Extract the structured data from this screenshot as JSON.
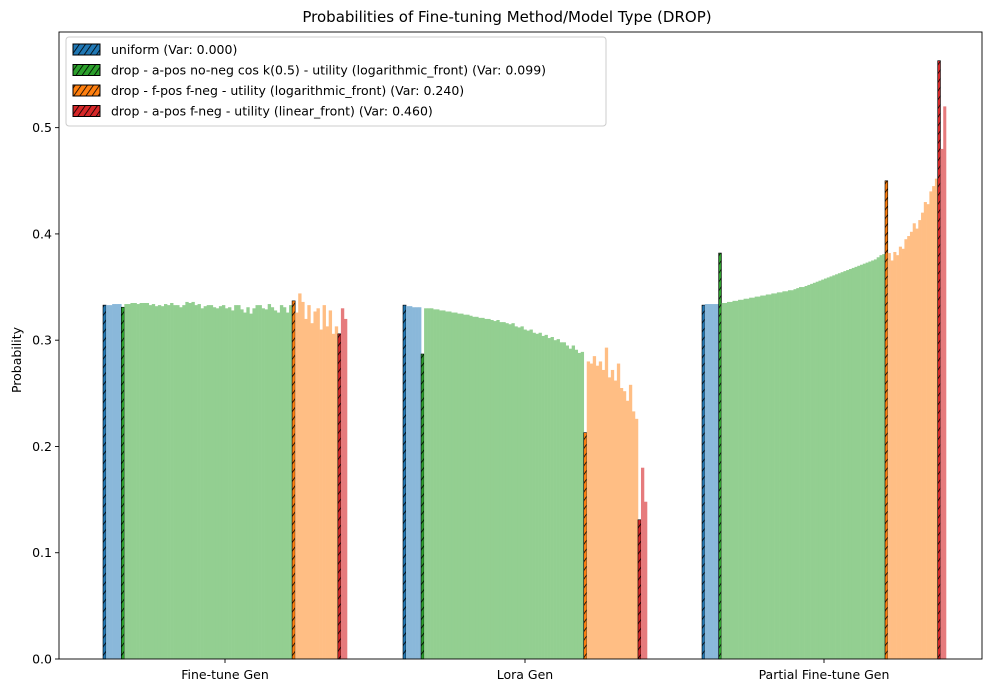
{
  "chart_data": {
    "type": "bar",
    "title": "Probabilities of Fine-tuning Method/Model Type (DROP)",
    "xlabel": "",
    "ylabel": "Probability",
    "ylim": [
      0,
      0.59
    ],
    "yticks": [
      0.0,
      0.1,
      0.2,
      0.3,
      0.4,
      0.5
    ],
    "ytick_labels": [
      "0.0",
      "0.1",
      "0.2",
      "0.3",
      "0.4",
      "0.5"
    ],
    "categories": [
      "Fine-tune Gen",
      "Lora Gen",
      "Partial Fine-tune Gen"
    ],
    "legend_position": "upper-left",
    "grid": false,
    "series": [
      {
        "name": "uniform (Var: 0.000)",
        "color": "#1f77b4",
        "values": [
          0.333,
          0.333,
          0.333
        ]
      },
      {
        "name": "drop - a-pos no-neg cos k(0.5) - utility (logarithmic_front) (Var: 0.099)",
        "color": "#2ca02c",
        "values": [
          0.331,
          0.287,
          0.382
        ]
      },
      {
        "name": "drop - f-pos f-neg - utility (logarithmic_front) (Var: 0.240)",
        "color": "#ff7f0e",
        "values": [
          0.337,
          0.213,
          0.45
        ]
      },
      {
        "name": "drop - a-pos f-neg - utility (linear_front) (Var: 0.460)",
        "color": "#d62728",
        "values": [
          0.306,
          0.131,
          0.563
        ]
      }
    ],
    "interpolated_bars": [
      {
        "group": "Fine-tune Gen",
        "blue": [
          0.333,
          0.333,
          0.334,
          0.334,
          0.334
        ],
        "green": [
          0.334,
          0.334,
          0.335,
          0.335,
          0.334,
          0.335,
          0.335,
          0.335,
          0.333,
          0.334,
          0.332,
          0.333,
          0.332,
          0.334,
          0.333,
          0.335,
          0.333,
          0.333,
          0.331,
          0.333,
          0.336,
          0.335,
          0.336,
          0.333,
          0.334,
          0.33,
          0.332,
          0.333,
          0.333,
          0.331,
          0.33,
          0.332,
          0.333,
          0.33,
          0.331,
          0.328,
          0.333,
          0.333,
          0.329,
          0.326,
          0.331,
          0.325,
          0.33,
          0.333,
          0.333,
          0.33,
          0.329,
          0.334,
          0.331,
          0.328,
          0.326,
          0.333,
          0.331,
          0.326,
          0.333
        ],
        "orange": [
          0.326,
          0.344,
          0.336,
          0.32,
          0.333,
          0.316,
          0.327,
          0.33,
          0.31,
          0.333,
          0.313,
          0.328,
          0.306,
          0.313
        ],
        "red": [
          0.33,
          0.32
        ]
      },
      {
        "group": "Lora Gen",
        "blue": [
          0.332,
          0.332,
          0.331,
          0.331,
          0.331
        ],
        "green": [
          0.33,
          0.33,
          0.33,
          0.329,
          0.329,
          0.328,
          0.328,
          0.327,
          0.327,
          0.326,
          0.326,
          0.325,
          0.325,
          0.324,
          0.324,
          0.323,
          0.322,
          0.322,
          0.321,
          0.321,
          0.32,
          0.32,
          0.319,
          0.318,
          0.319,
          0.317,
          0.317,
          0.316,
          0.315,
          0.316,
          0.313,
          0.312,
          0.313,
          0.31,
          0.309,
          0.31,
          0.307,
          0.306,
          0.307,
          0.304,
          0.305,
          0.302,
          0.303,
          0.3,
          0.301,
          0.298,
          0.298,
          0.295,
          0.292,
          0.295,
          0.291,
          0.288,
          0.289
        ],
        "orange": [
          0.28,
          0.278,
          0.285,
          0.276,
          0.28,
          0.272,
          0.293,
          0.265,
          0.272,
          0.262,
          0.278,
          0.255,
          0.252,
          0.243,
          0.258,
          0.233,
          0.226
        ],
        "red": [
          0.18,
          0.148
        ]
      },
      {
        "group": "Partial Fine-tune Gen",
        "blue": [
          0.334,
          0.334,
          0.334,
          0.334,
          0.334
        ],
        "green": [
          0.335,
          0.335,
          0.336,
          0.336,
          0.337,
          0.337,
          0.338,
          0.338,
          0.339,
          0.339,
          0.34,
          0.34,
          0.341,
          0.341,
          0.342,
          0.342,
          0.343,
          0.343,
          0.344,
          0.344,
          0.345,
          0.345,
          0.346,
          0.346,
          0.347,
          0.347,
          0.348,
          0.349,
          0.35,
          0.35,
          0.351,
          0.352,
          0.353,
          0.354,
          0.355,
          0.356,
          0.357,
          0.358,
          0.359,
          0.36,
          0.361,
          0.362,
          0.363,
          0.364,
          0.365,
          0.366,
          0.367,
          0.368,
          0.369,
          0.37,
          0.371,
          0.372,
          0.373,
          0.374,
          0.375,
          0.376,
          0.378,
          0.38,
          0.381
        ],
        "orange": [
          0.382,
          0.375,
          0.383,
          0.38,
          0.388,
          0.386,
          0.395,
          0.398,
          0.402,
          0.41,
          0.405,
          0.413,
          0.42,
          0.43,
          0.428,
          0.44,
          0.445,
          0.452
        ],
        "red": [
          0.48,
          0.52
        ]
      }
    ]
  },
  "colors": {
    "blue_light": "#8ab8da",
    "green_light": "#93cf91",
    "orange_light": "#ffbe84",
    "red_light": "#e67b7d"
  }
}
